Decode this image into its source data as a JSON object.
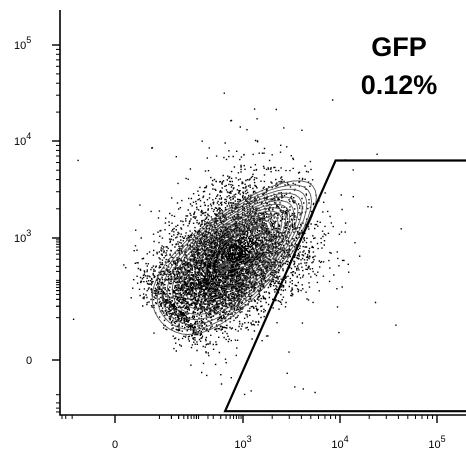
{
  "chart_data": {
    "type": "scatter",
    "subtype": "flow-cytometry-contour-with-outliers",
    "x_scale": "biexponential",
    "y_scale": "biexponential",
    "x_ticks": [
      {
        "value": 0,
        "label": "0"
      },
      {
        "value": 1000,
        "label": "10",
        "exp": "3"
      },
      {
        "value": 10000,
        "label": "10",
        "exp": "4"
      },
      {
        "value": 100000,
        "label": "10",
        "exp": "5"
      }
    ],
    "y_ticks": [
      {
        "value": 0,
        "label": "0"
      },
      {
        "value": 1000,
        "label": "10",
        "exp": "3"
      },
      {
        "value": 10000,
        "label": "10",
        "exp": "4"
      },
      {
        "value": 100000,
        "label": "10",
        "exp": "5"
      }
    ],
    "xlabel": "",
    "ylabel": "",
    "title": "",
    "gate": {
      "name": "GFP",
      "percent": "0.12%",
      "vertices_data": [
        [
          380,
          -900
        ],
        [
          9000,
          6300
        ],
        [
          250000,
          6300
        ],
        [
          250000,
          -900
        ]
      ]
    },
    "population": {
      "center": [
        450,
        300
      ],
      "contour_levels": 14
    },
    "colors": {
      "points": "#000000",
      "contour": "#555555",
      "gate": "#000000",
      "frame": "#000000"
    }
  }
}
